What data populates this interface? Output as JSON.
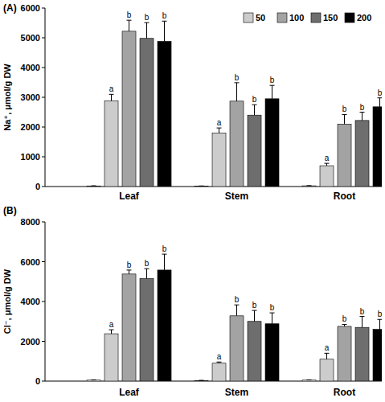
{
  "chart_data": [
    {
      "type": "bar",
      "title": "(A)",
      "y_label": "Na⁺, μmol/g DW",
      "categories": [
        "Leaf",
        "Stem",
        "Root"
      ],
      "series": [
        {
          "name": null,
          "color": "#ffffff",
          "values": [
            20,
            15,
            25
          ],
          "errors": [
            5,
            5,
            5
          ],
          "letters": [
            null,
            null,
            null
          ]
        },
        {
          "name": "50",
          "color": "#cccccc",
          "values": [
            2880,
            1800,
            700
          ],
          "errors": [
            220,
            170,
            80
          ],
          "letters": [
            "a",
            "a",
            "a"
          ]
        },
        {
          "name": "100",
          "color": "#a3a3a3",
          "values": [
            5220,
            2870,
            2100
          ],
          "errors": [
            370,
            620,
            320
          ],
          "letters": [
            "b",
            "b",
            "b"
          ]
        },
        {
          "name": "150",
          "color": "#6e6e6e",
          "values": [
            4980,
            2400,
            2220
          ],
          "errors": [
            530,
            350,
            280
          ],
          "letters": [
            "b",
            "b",
            "b"
          ]
        },
        {
          "name": "200",
          "color": "#000000",
          "values": [
            4880,
            2950,
            2680
          ],
          "errors": [
            680,
            450,
            300
          ],
          "letters": [
            "b",
            "b",
            "b"
          ]
        }
      ],
      "ylim": [
        0,
        6000
      ],
      "yticks": [
        0,
        1000,
        2000,
        3000,
        4000,
        5000,
        6000
      ],
      "legend": "top-right"
    },
    {
      "type": "bar",
      "title": "(B)",
      "y_label": "Cl⁻, μmol/g DW",
      "categories": [
        "Leaf",
        "Stem",
        "Root"
      ],
      "series": [
        {
          "name": null,
          "color": "#ffffff",
          "values": [
            50,
            30,
            50
          ],
          "errors": [
            10,
            8,
            10
          ],
          "letters": [
            null,
            null,
            null
          ]
        },
        {
          "name": "50",
          "color": "#cccccc",
          "values": [
            2380,
            900,
            1100
          ],
          "errors": [
            200,
            60,
            300
          ],
          "letters": [
            "a",
            "a",
            "a"
          ]
        },
        {
          "name": "100",
          "color": "#a3a3a3",
          "values": [
            5380,
            3280,
            2750
          ],
          "errors": [
            200,
            550,
            100
          ],
          "letters": [
            "b",
            "b",
            "b"
          ]
        },
        {
          "name": "150",
          "color": "#6e6e6e",
          "values": [
            5150,
            3000,
            2700
          ],
          "errors": [
            500,
            550,
            550
          ],
          "letters": [
            "b",
            "b",
            "b"
          ]
        },
        {
          "name": "200",
          "color": "#000000",
          "values": [
            5580,
            2880,
            2600
          ],
          "errors": [
            800,
            550,
            500
          ],
          "letters": [
            "b",
            "b",
            "b"
          ]
        }
      ],
      "ylim": [
        0,
        8000
      ],
      "yticks": [
        0,
        2000,
        4000,
        6000,
        8000
      ]
    }
  ]
}
